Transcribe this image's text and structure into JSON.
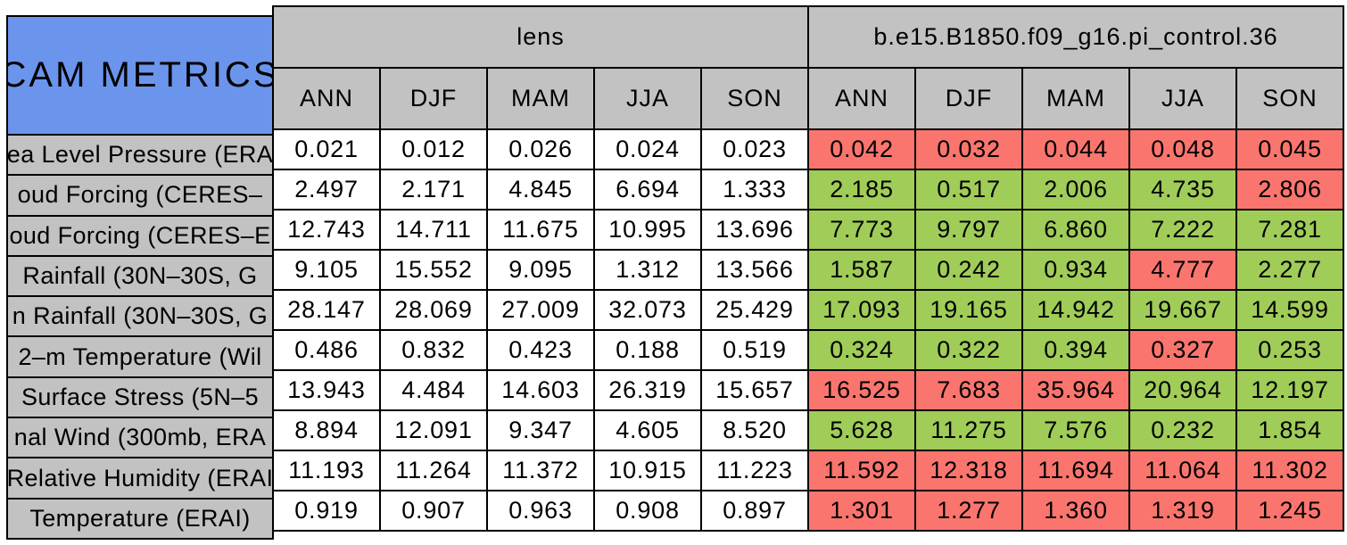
{
  "chart_data": {
    "type": "table",
    "title": "CAM METRICS",
    "column_groups": [
      "lens",
      "b.e15.B1850.f09_g16.pi_control.36"
    ],
    "seasons": [
      "ANN",
      "DJF",
      "MAM",
      "JJA",
      "SON"
    ],
    "colors": {
      "title_bg": "#6B95EC",
      "header_bg": "#C2C2C2",
      "lens_value_bg": "#FFFFFF",
      "better": "#A0CC58",
      "worse": "#FA756E",
      "border": "#000000",
      "text": "#000000"
    },
    "rows": [
      {
        "label": "ea Level Pressure (ERA",
        "lens": [
          "0.021",
          "0.012",
          "0.026",
          "0.024",
          "0.023"
        ],
        "control": [
          "0.042",
          "0.032",
          "0.044",
          "0.048",
          "0.045"
        ],
        "control_status": [
          "worse",
          "worse",
          "worse",
          "worse",
          "worse"
        ]
      },
      {
        "label": "oud Forcing (CERES–",
        "lens": [
          "2.497",
          "2.171",
          "4.845",
          "6.694",
          "1.333"
        ],
        "control": [
          "2.185",
          "0.517",
          "2.006",
          "4.735",
          "2.806"
        ],
        "control_status": [
          "better",
          "better",
          "better",
          "better",
          "worse"
        ]
      },
      {
        "label": "oud Forcing (CERES–E",
        "lens": [
          "12.743",
          "14.711",
          "11.675",
          "10.995",
          "13.696"
        ],
        "control": [
          "7.773",
          "9.797",
          "6.860",
          "7.222",
          "7.281"
        ],
        "control_status": [
          "better",
          "better",
          "better",
          "better",
          "better"
        ]
      },
      {
        "label": " Rainfall (30N–30S, G",
        "lens": [
          "9.105",
          "15.552",
          "9.095",
          "1.312",
          "13.566"
        ],
        "control": [
          "1.587",
          "0.242",
          "0.934",
          "4.777",
          "2.277"
        ],
        "control_status": [
          "better",
          "better",
          "better",
          "worse",
          "better"
        ]
      },
      {
        "label": "n Rainfall (30N–30S, G",
        "lens": [
          "28.147",
          "28.069",
          "27.009",
          "32.073",
          "25.429"
        ],
        "control": [
          "17.093",
          "19.165",
          "14.942",
          "19.667",
          "14.599"
        ],
        "control_status": [
          "better",
          "better",
          "better",
          "better",
          "better"
        ]
      },
      {
        "label": "2–m Temperature (Wil",
        "lens": [
          "0.486",
          "0.832",
          "0.423",
          "0.188",
          "0.519"
        ],
        "control": [
          "0.324",
          "0.322",
          "0.394",
          "0.327",
          "0.253"
        ],
        "control_status": [
          "better",
          "better",
          "better",
          "worse",
          "better"
        ]
      },
      {
        "label": " Surface Stress (5N–5",
        "lens": [
          "13.943",
          "4.484",
          "14.603",
          "26.319",
          "15.657"
        ],
        "control": [
          "16.525",
          "7.683",
          "35.964",
          "20.964",
          "12.197"
        ],
        "control_status": [
          "worse",
          "worse",
          "worse",
          "better",
          "better"
        ]
      },
      {
        "label": "nal Wind (300mb, ERA",
        "lens": [
          "8.894",
          "12.091",
          "9.347",
          "4.605",
          "8.520"
        ],
        "control": [
          "5.628",
          "11.275",
          "7.576",
          "0.232",
          "1.854"
        ],
        "control_status": [
          "better",
          "better",
          "better",
          "better",
          "better"
        ]
      },
      {
        "label": "Relative Humidity (ERAI",
        "lens": [
          "11.193",
          "11.264",
          "11.372",
          "10.915",
          "11.223"
        ],
        "control": [
          "11.592",
          "12.318",
          "11.694",
          "11.064",
          "11.302"
        ],
        "control_status": [
          "worse",
          "worse",
          "worse",
          "worse",
          "worse"
        ]
      },
      {
        "label": "Temperature (ERAI)",
        "lens": [
          "0.919",
          "0.907",
          "0.963",
          "0.908",
          "0.897"
        ],
        "control": [
          "1.301",
          "1.277",
          "1.360",
          "1.319",
          "1.245"
        ],
        "control_status": [
          "worse",
          "worse",
          "worse",
          "worse",
          "worse"
        ]
      }
    ]
  }
}
